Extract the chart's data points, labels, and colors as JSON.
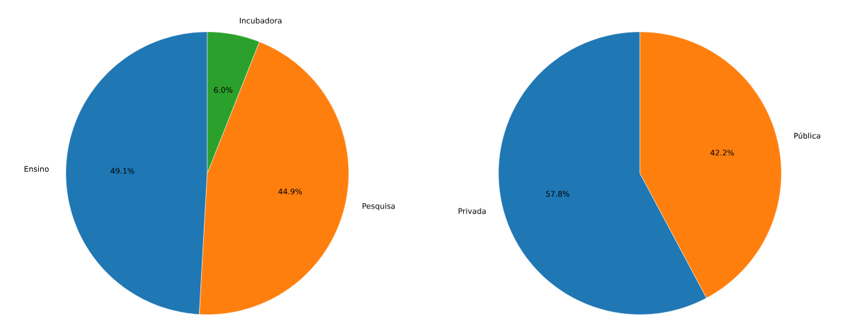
{
  "chart_data": [
    {
      "type": "pie",
      "categories": [
        "Ensino",
        "Pesquisa",
        "Incubadora"
      ],
      "values": [
        49.1,
        44.9,
        6.0
      ],
      "colors": [
        "#1f77b4",
        "#ff7f0e",
        "#2ca02c"
      ],
      "value_labels": [
        "49.1%",
        "44.9%",
        "6.0%"
      ]
    },
    {
      "type": "pie",
      "categories": [
        "Privada",
        "Pública"
      ],
      "values": [
        57.8,
        42.2
      ],
      "colors": [
        "#1f77b4",
        "#ff7f0e"
      ],
      "value_labels": [
        "57.8%",
        "42.2%"
      ]
    }
  ]
}
